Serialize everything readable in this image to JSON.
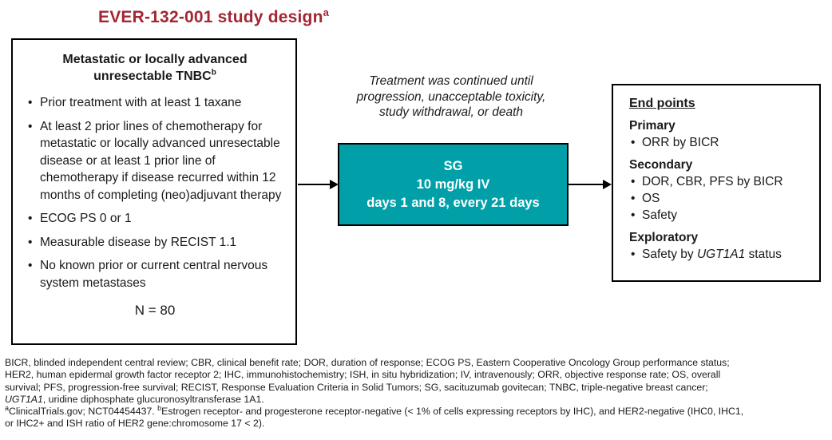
{
  "colors": {
    "title_red": "#A32633",
    "sg_box_teal": "#01A0A8",
    "box_border": "#000000",
    "sg_box_text": "#FFFFFF"
  },
  "title": {
    "segments": [
      {
        "t": "EVER-132-001 study design"
      },
      {
        "t": "a",
        "sup": true
      }
    ]
  },
  "population_box": {
    "heading_lines": [
      [
        {
          "t": "Metastatic or locally advanced"
        }
      ],
      [
        {
          "t": "unresectable TNBC"
        },
        {
          "t": "b",
          "sup": true
        }
      ]
    ],
    "bullets": [
      "Prior treatment with at least 1 taxane",
      "At least 2 prior lines of chemotherapy for metastatic or locally advanced unresectable disease or at least 1 prior line of chemotherapy if disease recurred within 12 months of completing (neo)adjuvant therapy",
      "ECOG PS 0 or 1",
      "Measurable disease by RECIST 1.1",
      "No known prior or current central nervous system metastases"
    ],
    "n_label": "N = 80"
  },
  "treatment": {
    "note_lines": [
      "Treatment was continued until",
      "progression, unacceptable toxicity,",
      "study withdrawal, or death"
    ],
    "box_lines": [
      "SG",
      "10 mg/kg IV",
      "days 1 and 8, every 21 days"
    ]
  },
  "endpoints_box": {
    "heading": "End points",
    "sections": [
      {
        "label": "Primary",
        "items": [
          [
            {
              "t": "ORR by BICR"
            }
          ]
        ]
      },
      {
        "label": "Secondary",
        "items": [
          [
            {
              "t": "DOR, CBR, PFS by BICR"
            }
          ],
          [
            {
              "t": "OS"
            }
          ],
          [
            {
              "t": "Safety"
            }
          ]
        ]
      },
      {
        "label": "Exploratory",
        "items": [
          [
            {
              "t": "Safety by "
            },
            {
              "t": "UGT1A1",
              "i": true
            },
            {
              "t": " status"
            }
          ]
        ]
      }
    ]
  },
  "footnotes": {
    "lines": [
      [
        {
          "t": "BICR, blinded independent central review; CBR, clinical benefit rate; DOR, duration of response; ECOG PS, Eastern Cooperative Oncology Group performance status;"
        }
      ],
      [
        {
          "t": "HER2, human epidermal growth factor receptor 2; IHC, immunohistochemistry; ISH, in situ hybridization; IV, intravenously; ORR, objective response rate; OS, overall"
        }
      ],
      [
        {
          "t": "survival; PFS, progression-free survival; RECIST, Response Evaluation Criteria in Solid Tumors; SG, sacituzumab govitecan; TNBC, triple-negative breast cancer;"
        }
      ],
      [
        {
          "t": "UGT1A1",
          "i": true
        },
        {
          "t": ", uridine diphosphate glucuronosyltransferase 1A1."
        }
      ],
      [
        {
          "t": "a",
          "sup": true
        },
        {
          "t": "ClinicalTrials.gov; NCT04454437. "
        },
        {
          "t": "b",
          "sup": true
        },
        {
          "t": "Estrogen receptor- and progesterone receptor-negative (< 1% of cells expressing receptors by IHC), and HER2-negative (IHC0, IHC1,"
        }
      ],
      [
        {
          "t": "or IHC2+ and ISH ratio of HER2 gene:chromosome 17 < 2)."
        }
      ]
    ]
  }
}
